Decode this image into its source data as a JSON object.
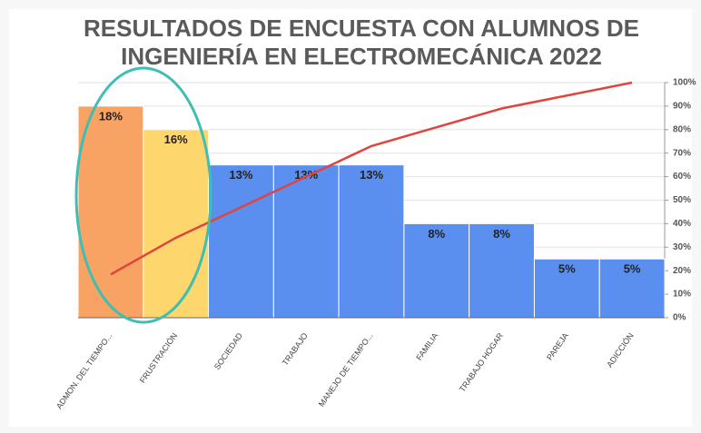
{
  "chart_data": {
    "type": "pareto",
    "title": [
      "RESULTADOS DE ENCUESTA CON ALUMNOS DE",
      "INGENIERÍA EN ELECTROMECÁNICA 2022"
    ],
    "categories": [
      "ADMON. DEL TIEMPO...",
      "FRUSTRACIÓN",
      "SOCIEDAD",
      "TRABAJO",
      "MANEJO DE TIEMPO...",
      "FAMILIA",
      "TRABAJO HOGAR",
      "PAREJA",
      "ADICCIÓN"
    ],
    "series": [
      {
        "type": "bar",
        "values": [
          18,
          16,
          13,
          13,
          13,
          8,
          8,
          5,
          5
        ],
        "value_labels": [
          "18%",
          "16%",
          "13%",
          "13%",
          "13%",
          "8%",
          "8%",
          "5%",
          "5%"
        ],
        "colors": [
          "#f8a263",
          "#fdd66e",
          "#5a8ff0",
          "#5a8ff0",
          "#5a8ff0",
          "#5a8ff0",
          "#5a8ff0",
          "#5a8ff0",
          "#5a8ff0"
        ]
      },
      {
        "type": "line",
        "axis": "y2",
        "color": "#e0443e",
        "values": [
          18.4,
          34,
          47,
          60,
          73,
          81,
          89,
          94.5,
          100
        ]
      }
    ],
    "ylim": [
      0,
      20
    ],
    "y2lim": [
      0,
      100
    ],
    "y2ticks": [
      {
        "value": 0,
        "label": "0%"
      },
      {
        "value": 10,
        "label": "10%"
      },
      {
        "value": 20,
        "label": "20%"
      },
      {
        "value": 30,
        "label": "30%"
      },
      {
        "value": 40,
        "label": "40%"
      },
      {
        "value": 50,
        "label": "50%"
      },
      {
        "value": 60,
        "label": "60%"
      },
      {
        "value": 70,
        "label": "70%"
      },
      {
        "value": 80,
        "label": "80%"
      },
      {
        "value": 90,
        "label": "90%"
      },
      {
        "value": 100,
        "label": "100%"
      }
    ],
    "grid": true
  }
}
